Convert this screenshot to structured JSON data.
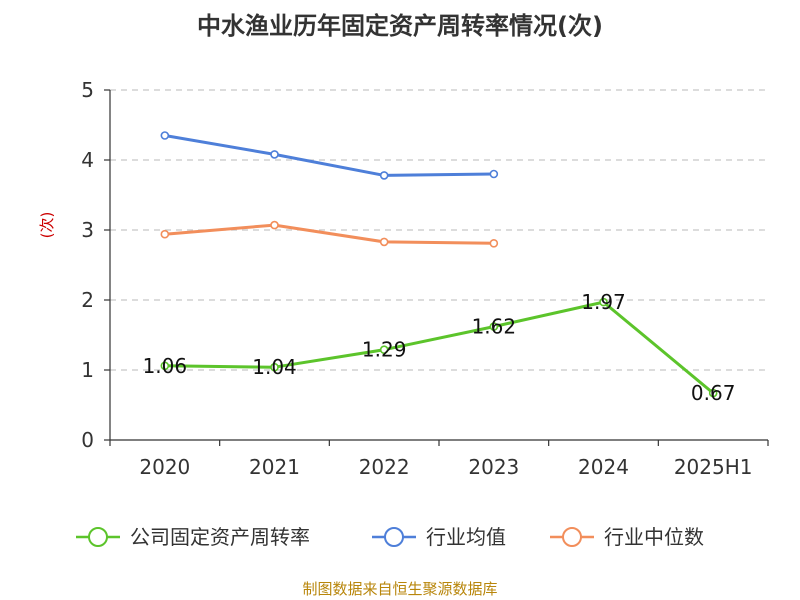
{
  "chart_data": {
    "type": "line",
    "title": "中水渔业历年固定资产周转率情况(次)",
    "ylabel": "(次)",
    "xlabel": "",
    "categories": [
      "2020",
      "2021",
      "2022",
      "2023",
      "2024",
      "2025H1"
    ],
    "ylim": [
      0,
      5
    ],
    "yticks": [
      0,
      1,
      2,
      3,
      4,
      5
    ],
    "grid": true,
    "legend_position": "bottom",
    "series": [
      {
        "name": "公司固定资产周转率",
        "color": "#5cc42b",
        "values": [
          1.06,
          1.04,
          1.29,
          1.62,
          1.97,
          0.67
        ],
        "show_labels": true
      },
      {
        "name": "行业均值",
        "color": "#4e7fd9",
        "values": [
          4.35,
          4.08,
          3.78,
          3.8,
          null,
          null
        ],
        "show_labels": false
      },
      {
        "name": "行业中位数",
        "color": "#f28e5b",
        "values": [
          2.94,
          3.07,
          2.83,
          2.81,
          null,
          null
        ],
        "show_labels": false
      }
    ]
  },
  "source": "制图数据来自恒生聚源数据库"
}
